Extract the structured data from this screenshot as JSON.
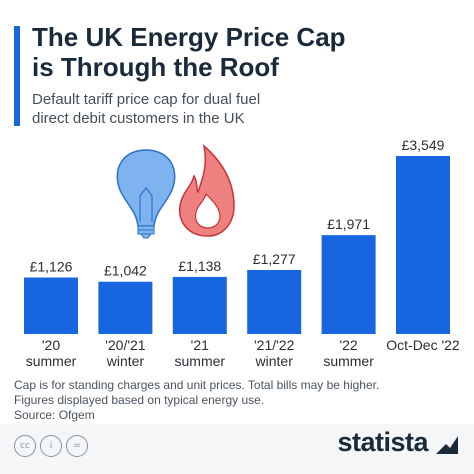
{
  "title_line1": "The UK Energy Price Cap",
  "title_line2": "is Through the Roof",
  "subtitle_line1": "Default tariff price cap for dual fuel",
  "subtitle_line2": "direct debit customers in the UK",
  "colors": {
    "bar": "#1766e0",
    "accent": "#1766e0",
    "bulb": "#7fb3ef",
    "flame": "#ef7f7f"
  },
  "icons": [
    "light-bulb-icon",
    "flame-icon"
  ],
  "chart_data": {
    "type": "bar",
    "categories": [
      [
        "'20",
        "summer"
      ],
      [
        "'20/'21",
        "winter"
      ],
      [
        "'21",
        "summer"
      ],
      [
        "'21/'22",
        "winter"
      ],
      [
        "'22",
        "summer"
      ],
      [
        "Oct-Dec '22"
      ]
    ],
    "values": [
      1126,
      1042,
      1138,
      1277,
      1971,
      3549
    ],
    "value_labels": [
      "£1,126",
      "£1,042",
      "£1,138",
      "£1,277",
      "£1,971",
      "£3,549"
    ],
    "ylim": [
      0,
      3549
    ],
    "grid": false
  },
  "footnote_line1": "Cap is for standing charges and unit prices. Total bills may be higher.",
  "footnote_line2": "Figures displayed based on typical energy use.",
  "source": "Source: Ofgem",
  "license_icons": [
    "cc",
    "i",
    "="
  ],
  "brand": "statista"
}
